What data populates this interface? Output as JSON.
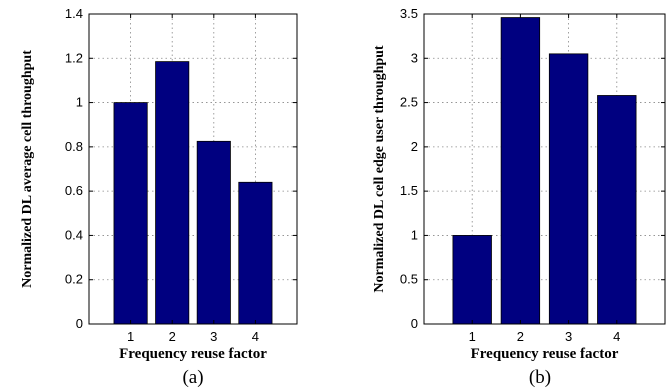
{
  "chart_data": [
    {
      "type": "bar",
      "caption": "(a)",
      "categories": [
        "1",
        "2",
        "3",
        "4"
      ],
      "values": [
        1.0,
        1.185,
        0.825,
        0.64
      ],
      "xlabel": "Frequency reuse factor",
      "ylabel": "Normalized DL average cell throughput",
      "ylim": [
        0,
        1.4
      ],
      "yticks": [
        "0",
        "0.2",
        "0.4",
        "0.6",
        "0.8",
        "1",
        "1.2",
        "1.4"
      ],
      "grid": true,
      "bar_color": "#000080"
    },
    {
      "type": "bar",
      "caption": "(b)",
      "categories": [
        "1",
        "2",
        "3",
        "4"
      ],
      "values": [
        1.0,
        3.46,
        3.05,
        2.58
      ],
      "xlabel": "Frequency reuse factor",
      "ylabel": "Normalized DL cell edge user throughput",
      "ylim": [
        0,
        3.5
      ],
      "yticks": [
        "0",
        "0.5",
        "1",
        "1.5",
        "2",
        "2.5",
        "3",
        "3.5"
      ],
      "grid": true,
      "bar_color": "#000080"
    }
  ]
}
